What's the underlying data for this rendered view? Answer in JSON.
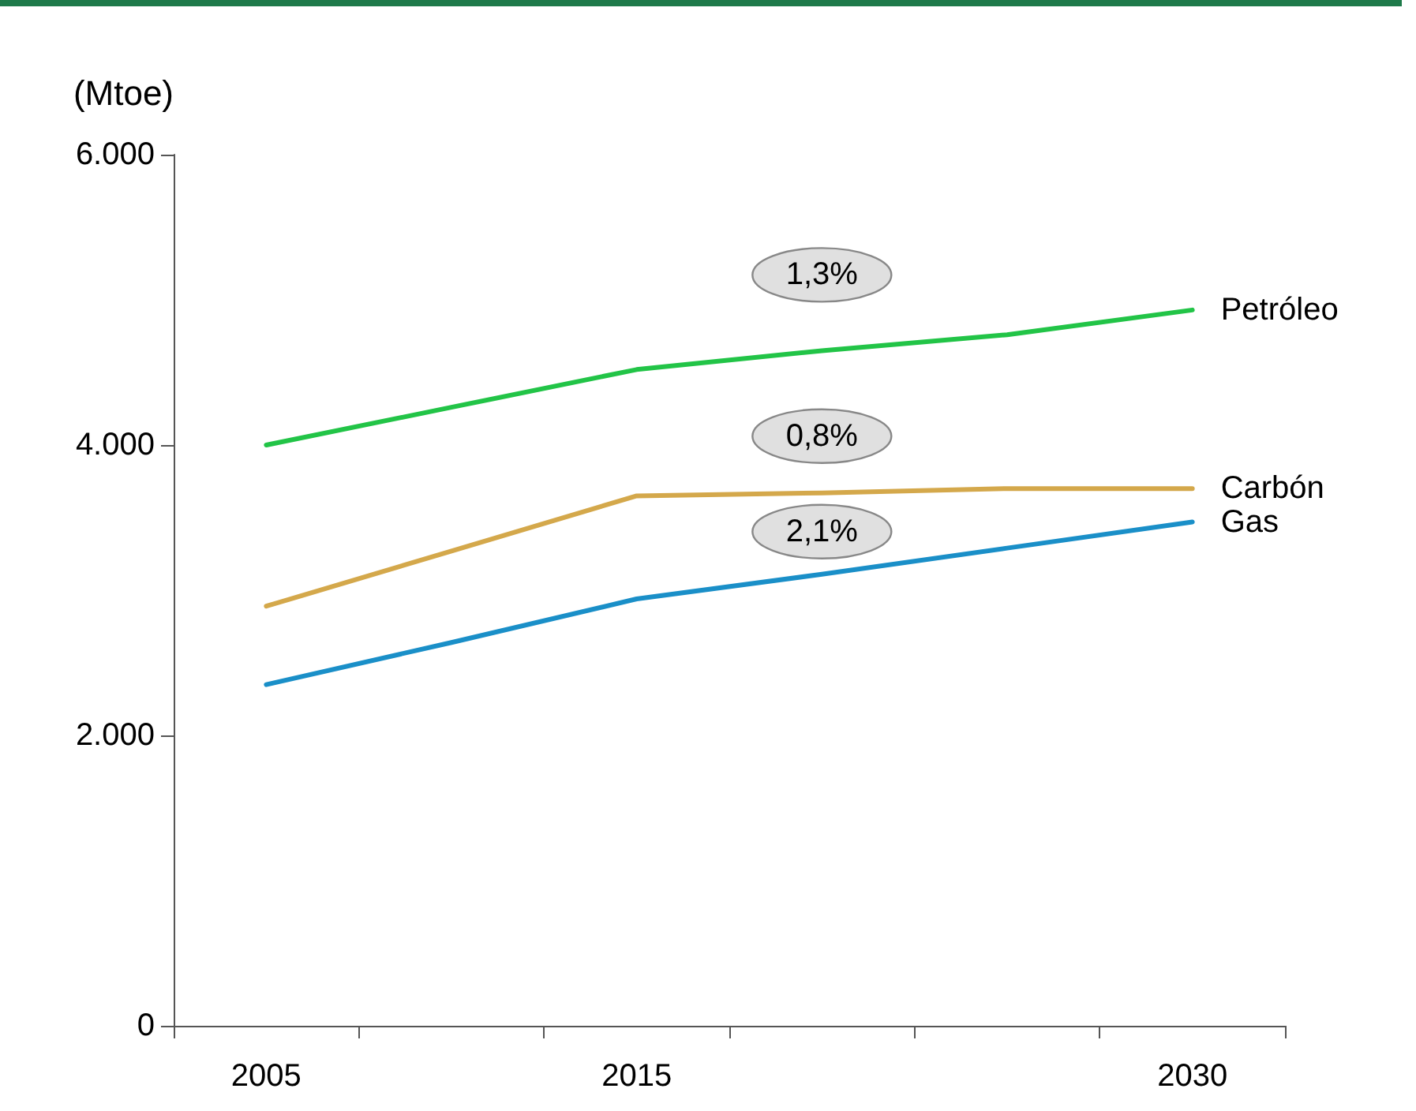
{
  "chart_data": {
    "type": "line",
    "ylabel": "(Mtoe)",
    "categories": [
      "2005",
      null,
      "2015",
      null,
      null,
      "2030"
    ],
    "series": [
      {
        "name": "Petróleo",
        "color": "#22c447",
        "values": [
          4000,
          4260,
          4520,
          4650,
          4760,
          4930
        ]
      },
      {
        "name": "Carbón",
        "color": "#d4a84b",
        "values": [
          2890,
          3270,
          3650,
          3670,
          3700,
          3700
        ]
      },
      {
        "name": "Gas",
        "color": "#1a8fc8",
        "values": [
          2350,
          2640,
          2940,
          3110,
          3290,
          3470
        ]
      }
    ],
    "ylim": [
      0,
      6000
    ],
    "yticks": [
      {
        "value": 0,
        "label": "0"
      },
      {
        "value": 2000,
        "label": "2.000"
      },
      {
        "value": 4000,
        "label": "4.000"
      },
      {
        "value": 6000,
        "label": "6.000"
      }
    ],
    "annotations": [
      "1,3%",
      "0,8%",
      "2,1%"
    ],
    "grid": false,
    "legend": false,
    "marker": "none",
    "line_style": "solid"
  }
}
